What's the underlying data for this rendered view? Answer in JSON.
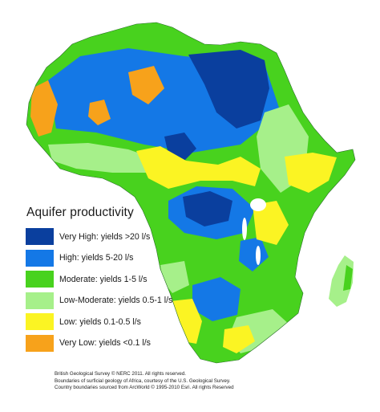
{
  "legend": {
    "title": "Aquifer productivity",
    "items": [
      {
        "label": "Very High: yields >20 l/s",
        "color": "#0a3f9e"
      },
      {
        "label": "High: yields 5-20 l/s",
        "color": "#1478e6"
      },
      {
        "label": "Moderate: yields 1-5 l/s",
        "color": "#48d21e"
      },
      {
        "label": "Low-Moderate: yields 0.5-1 l/s",
        "color": "#a6f08a"
      },
      {
        "label": "Low: yields 0.1-0.5 l/s",
        "color": "#fbf423"
      },
      {
        "label": "Very Low: yields <0.1 l/s",
        "color": "#f7a21b"
      }
    ]
  },
  "credits": [
    "British Geological Survey © NERC 2011.  All rights reserved.",
    "Boundaries of surficial geology of Africa, courtesy of the U.S. Geological Survey.",
    "Country boundaries sourced from ArcWorld © 1995-2010 Esri.  All rights Reserved"
  ],
  "map_colors": {
    "very_high": "#0a3f9e",
    "high": "#1478e6",
    "moderate": "#48d21e",
    "low_moderate": "#a6f08a",
    "low": "#fbf423",
    "very_low": "#f7a21b",
    "water": "#ffffff"
  }
}
